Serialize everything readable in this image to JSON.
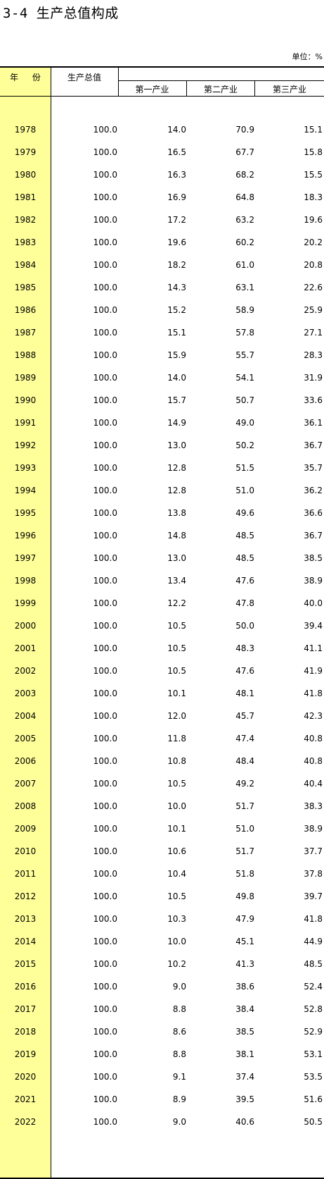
{
  "title": "3-4  生产总值构成",
  "unit": "单位：%",
  "headers": {
    "year": "年  份",
    "gdp": "生产总值",
    "primary": "第一产业",
    "secondary": "第二产业",
    "tertiary": "第三产业"
  },
  "rows": [
    {
      "year": "1978",
      "gdp": "100.0",
      "primary": "14.0",
      "secondary": "70.9",
      "tertiary": "15.1"
    },
    {
      "year": "1979",
      "gdp": "100.0",
      "primary": "16.5",
      "secondary": "67.7",
      "tertiary": "15.8"
    },
    {
      "year": "1980",
      "gdp": "100.0",
      "primary": "16.3",
      "secondary": "68.2",
      "tertiary": "15.5"
    },
    {
      "year": "1981",
      "gdp": "100.0",
      "primary": "16.9",
      "secondary": "64.8",
      "tertiary": "18.3"
    },
    {
      "year": "1982",
      "gdp": "100.0",
      "primary": "17.2",
      "secondary": "63.2",
      "tertiary": "19.6"
    },
    {
      "year": "1983",
      "gdp": "100.0",
      "primary": "19.6",
      "secondary": "60.2",
      "tertiary": "20.2"
    },
    {
      "year": "1984",
      "gdp": "100.0",
      "primary": "18.2",
      "secondary": "61.0",
      "tertiary": "20.8"
    },
    {
      "year": "1985",
      "gdp": "100.0",
      "primary": "14.3",
      "secondary": "63.1",
      "tertiary": "22.6"
    },
    {
      "year": "1986",
      "gdp": "100.0",
      "primary": "15.2",
      "secondary": "58.9",
      "tertiary": "25.9"
    },
    {
      "year": "1987",
      "gdp": "100.0",
      "primary": "15.1",
      "secondary": "57.8",
      "tertiary": "27.1"
    },
    {
      "year": "1988",
      "gdp": "100.0",
      "primary": "15.9",
      "secondary": "55.7",
      "tertiary": "28.3"
    },
    {
      "year": "1989",
      "gdp": "100.0",
      "primary": "14.0",
      "secondary": "54.1",
      "tertiary": "31.9"
    },
    {
      "year": "1990",
      "gdp": "100.0",
      "primary": "15.7",
      "secondary": "50.7",
      "tertiary": "33.6"
    },
    {
      "year": "1991",
      "gdp": "100.0",
      "primary": "14.9",
      "secondary": "49.0",
      "tertiary": "36.1"
    },
    {
      "year": "1992",
      "gdp": "100.0",
      "primary": "13.0",
      "secondary": "50.2",
      "tertiary": "36.7"
    },
    {
      "year": "1993",
      "gdp": "100.0",
      "primary": "12.8",
      "secondary": "51.5",
      "tertiary": "35.7"
    },
    {
      "year": "1994",
      "gdp": "100.0",
      "primary": "12.8",
      "secondary": "51.0",
      "tertiary": "36.2"
    },
    {
      "year": "1995",
      "gdp": "100.0",
      "primary": "13.8",
      "secondary": "49.6",
      "tertiary": "36.6"
    },
    {
      "year": "1996",
      "gdp": "100.0",
      "primary": "14.8",
      "secondary": "48.5",
      "tertiary": "36.7"
    },
    {
      "year": "1997",
      "gdp": "100.0",
      "primary": "13.0",
      "secondary": "48.5",
      "tertiary": "38.5"
    },
    {
      "year": "1998",
      "gdp": "100.0",
      "primary": "13.4",
      "secondary": "47.6",
      "tertiary": "38.9"
    },
    {
      "year": "1999",
      "gdp": "100.0",
      "primary": "12.2",
      "secondary": "47.8",
      "tertiary": "40.0"
    },
    {
      "year": "2000",
      "gdp": "100.0",
      "primary": "10.5",
      "secondary": "50.0",
      "tertiary": "39.4"
    },
    {
      "year": "2001",
      "gdp": "100.0",
      "primary": "10.5",
      "secondary": "48.3",
      "tertiary": "41.1"
    },
    {
      "year": "2002",
      "gdp": "100.0",
      "primary": "10.5",
      "secondary": "47.6",
      "tertiary": "41.9"
    },
    {
      "year": "2003",
      "gdp": "100.0",
      "primary": "10.1",
      "secondary": "48.1",
      "tertiary": "41.8"
    },
    {
      "year": "2004",
      "gdp": "100.0",
      "primary": "12.0",
      "secondary": "45.7",
      "tertiary": "42.3"
    },
    {
      "year": "2005",
      "gdp": "100.0",
      "primary": "11.8",
      "secondary": "47.4",
      "tertiary": "40.8"
    },
    {
      "year": "2006",
      "gdp": "100.0",
      "primary": "10.8",
      "secondary": "48.4",
      "tertiary": "40.8"
    },
    {
      "year": "2007",
      "gdp": "100.0",
      "primary": "10.5",
      "secondary": "49.2",
      "tertiary": "40.4"
    },
    {
      "year": "2008",
      "gdp": "100.0",
      "primary": "10.0",
      "secondary": "51.7",
      "tertiary": "38.3"
    },
    {
      "year": "2009",
      "gdp": "100.0",
      "primary": "10.1",
      "secondary": "51.0",
      "tertiary": "38.9"
    },
    {
      "year": "2010",
      "gdp": "100.0",
      "primary": "10.6",
      "secondary": "51.7",
      "tertiary": "37.7"
    },
    {
      "year": "2011",
      "gdp": "100.0",
      "primary": "10.4",
      "secondary": "51.8",
      "tertiary": "37.8"
    },
    {
      "year": "2012",
      "gdp": "100.0",
      "primary": "10.5",
      "secondary": "49.8",
      "tertiary": "39.7"
    },
    {
      "year": "2013",
      "gdp": "100.0",
      "primary": "10.3",
      "secondary": "47.9",
      "tertiary": "41.8"
    },
    {
      "year": "2014",
      "gdp": "100.0",
      "primary": "10.0",
      "secondary": "45.1",
      "tertiary": "44.9"
    },
    {
      "year": "2015",
      "gdp": "100.0",
      "primary": "10.2",
      "secondary": "41.3",
      "tertiary": "48.5"
    },
    {
      "year": "2016",
      "gdp": "100.0",
      "primary": "9.0",
      "secondary": "38.6",
      "tertiary": "52.4"
    },
    {
      "year": "2017",
      "gdp": "100.0",
      "primary": "8.8",
      "secondary": "38.4",
      "tertiary": "52.8"
    },
    {
      "year": "2018",
      "gdp": "100.0",
      "primary": "8.6",
      "secondary": "38.5",
      "tertiary": "52.9"
    },
    {
      "year": "2019",
      "gdp": "100.0",
      "primary": "8.8",
      "secondary": "38.1",
      "tertiary": "53.1"
    },
    {
      "year": "2020",
      "gdp": "100.0",
      "primary": "9.1",
      "secondary": "37.4",
      "tertiary": "53.5"
    },
    {
      "year": "2021",
      "gdp": "100.0",
      "primary": "8.9",
      "secondary": "39.5",
      "tertiary": "51.6"
    },
    {
      "year": "2022",
      "gdp": "100.0",
      "primary": "9.0",
      "secondary": "40.6",
      "tertiary": "50.5"
    }
  ],
  "colors": {
    "year_column_bg": "#ffff99",
    "rule": "#000000"
  }
}
